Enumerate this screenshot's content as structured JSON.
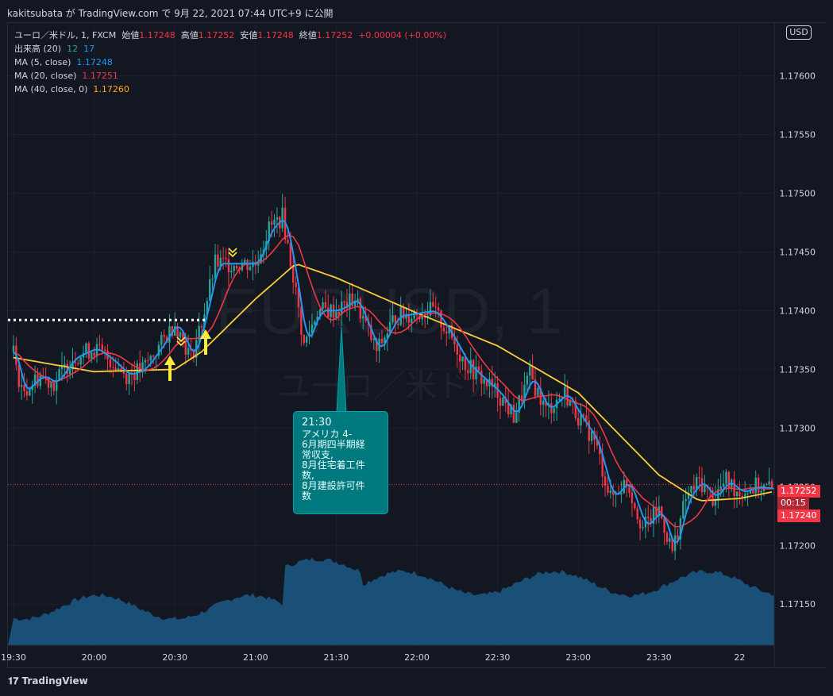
{
  "header": {
    "publish_text": "kakitsubata が TradingView.com で 9月 22, 2021 07:44 UTC+9 に公開"
  },
  "legend": {
    "symbol": "ユーロ／米ドル, 1, FXCM",
    "open_label": "始値",
    "open": "1.17248",
    "high_label": "高値",
    "high": "1.17252",
    "low_label": "安値",
    "low": "1.17248",
    "close_label": "終値",
    "close": "1.17252",
    "change": "+0.00004 (+0.00%)",
    "volume_label": "出来高 (20)",
    "volume_a": "12",
    "volume_b": "17",
    "ma5_label": "MA (5, close)",
    "ma5_value": "1.17248",
    "ma20_label": "MA (20, close)",
    "ma20_value": "1.17251",
    "ma40_label": "MA (40, close, 0)",
    "ma40_value": "1.17260"
  },
  "watermark": {
    "symbol": "EURUSD, 1",
    "name": "ユーロ／米ドル"
  },
  "currency_button": "USD",
  "price_badges": {
    "last_price": "1.17252",
    "countdown": "00:15",
    "ma_price": "1.17240"
  },
  "callout": {
    "time": "21:30",
    "lines": [
      "アメリカ 4-",
      "6月期四半期経",
      "常収支,",
      "8月住宅着工件",
      "数,",
      "8月建設許可件",
      "数"
    ]
  },
  "footer": {
    "brand": "TradingView"
  },
  "colors": {
    "background": "#131722",
    "up": "#26a69a",
    "down": "#f23645",
    "ma5": "#2196f3",
    "ma20": "#f23645",
    "ma40": "#ffcc33",
    "volume": "#1c5a86",
    "arrow": "#ffeb3b"
  },
  "chart_data": {
    "type": "candlestick",
    "ylim": [
      1.17115,
      1.17645
    ],
    "yticks": [
      "1.17600",
      "1.17550",
      "1.17500",
      "1.17450",
      "1.17400",
      "1.17350",
      "1.17300",
      "1.17250",
      "1.17200",
      "1.17150"
    ],
    "xticks": [
      "19:30",
      "20:00",
      "20:30",
      "21:00",
      "21:30",
      "22:00",
      "22:30",
      "23:00",
      "23:30",
      "22"
    ],
    "x_range": [
      "19:30",
      "00:13"
    ],
    "reference_level_dotted": 1.17392,
    "reference_level_last": 1.17252,
    "close_path": [
      [
        "19:30",
        1.17365
      ],
      [
        "19:33",
        1.1733
      ],
      [
        "19:40",
        1.17345
      ],
      [
        "19:45",
        1.17338
      ],
      [
        "19:52",
        1.1736
      ],
      [
        "20:00",
        1.17368
      ],
      [
        "20:06",
        1.17358
      ],
      [
        "20:12",
        1.17345
      ],
      [
        "20:18",
        1.1735
      ],
      [
        "20:25",
        1.17372
      ],
      [
        "20:30",
        1.1739
      ],
      [
        "20:36",
        1.1736
      ],
      [
        "20:40",
        1.1739
      ],
      [
        "20:45",
        1.1744
      ],
      [
        "20:52",
        1.1744
      ],
      [
        "21:00",
        1.1744
      ],
      [
        "21:05",
        1.1747
      ],
      [
        "21:10",
        1.1748
      ],
      [
        "21:14",
        1.1743
      ],
      [
        "21:18",
        1.1737
      ],
      [
        "21:23",
        1.174
      ],
      [
        "21:30",
        1.174
      ],
      [
        "21:37",
        1.1741
      ],
      [
        "21:45",
        1.17365
      ],
      [
        "21:52",
        1.17395
      ],
      [
        "22:00",
        1.17398
      ],
      [
        "22:06",
        1.174
      ],
      [
        "22:12",
        1.1738
      ],
      [
        "22:18",
        1.17355
      ],
      [
        "22:25",
        1.1734
      ],
      [
        "22:30",
        1.1733
      ],
      [
        "22:36",
        1.1731
      ],
      [
        "22:42",
        1.17345
      ],
      [
        "22:48",
        1.17315
      ],
      [
        "22:55",
        1.1733
      ],
      [
        "23:00",
        1.1731
      ],
      [
        "23:06",
        1.1729
      ],
      [
        "23:12",
        1.1724
      ],
      [
        "23:18",
        1.17255
      ],
      [
        "23:24",
        1.17215
      ],
      [
        "23:30",
        1.1723
      ],
      [
        "23:35",
        1.17195
      ],
      [
        "23:40",
        1.1724
      ],
      [
        "23:45",
        1.17255
      ],
      [
        "23:50",
        1.1724
      ],
      [
        "23:55",
        1.17255
      ],
      [
        "00:00",
        1.17245
      ],
      [
        "00:06",
        1.1725
      ],
      [
        "00:13",
        1.17248
      ]
    ],
    "ma40_path": [
      [
        "19:30",
        1.1736
      ],
      [
        "20:00",
        1.17348
      ],
      [
        "20:30",
        1.1735
      ],
      [
        "20:40",
        1.17365
      ],
      [
        "21:00",
        1.1741
      ],
      [
        "21:15",
        1.1744
      ],
      [
        "21:30",
        1.17428
      ],
      [
        "22:00",
        1.17398
      ],
      [
        "22:30",
        1.1737
      ],
      [
        "23:00",
        1.1733
      ],
      [
        "23:30",
        1.1726
      ],
      [
        "23:45",
        1.17238
      ],
      [
        "00:00",
        1.1724
      ],
      [
        "00:13",
        1.17246
      ]
    ]
  }
}
